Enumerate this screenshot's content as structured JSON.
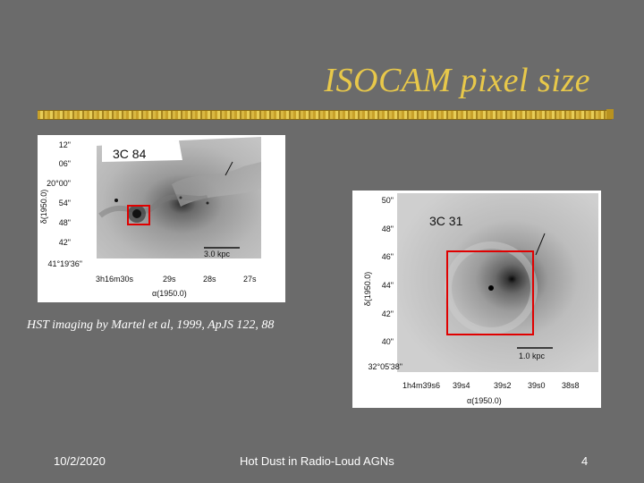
{
  "slide": {
    "title": "ISOCAM pixel size",
    "caption": "HST imaging by Martel et al, 1999, ApJS 122, 88",
    "date": "10/2/2020",
    "footer_text": "Hot Dust in Radio-Loud AGNs",
    "page_number": "4"
  },
  "image_left": {
    "label": "3C 84",
    "scale_bar": "3.0 kpc",
    "y_ticks": [
      "12\"",
      "06\"",
      "20°00\"",
      "54\"",
      "48\"",
      "42\"",
      "41°19'36\""
    ],
    "y_axis_label": "δ(1950.0)",
    "x_ticks": [
      "3h16m30s",
      "29s",
      "28s",
      "27s"
    ],
    "x_axis_label": "α(1950.0)",
    "box_color": "#e00000"
  },
  "image_right": {
    "label": "3C 31",
    "scale_bar": "1.0 kpc",
    "y_ticks": [
      "50\"",
      "48\"",
      "46\"",
      "44\"",
      "42\"",
      "40\"",
      "32°05'38\""
    ],
    "y_axis_label": "δ(1950.0)",
    "x_ticks": [
      "1h4m39s6",
      "39s4",
      "39s2",
      "39s0",
      "38s8"
    ],
    "x_axis_label": "α(1950.0)",
    "box_color": "#e00000"
  }
}
